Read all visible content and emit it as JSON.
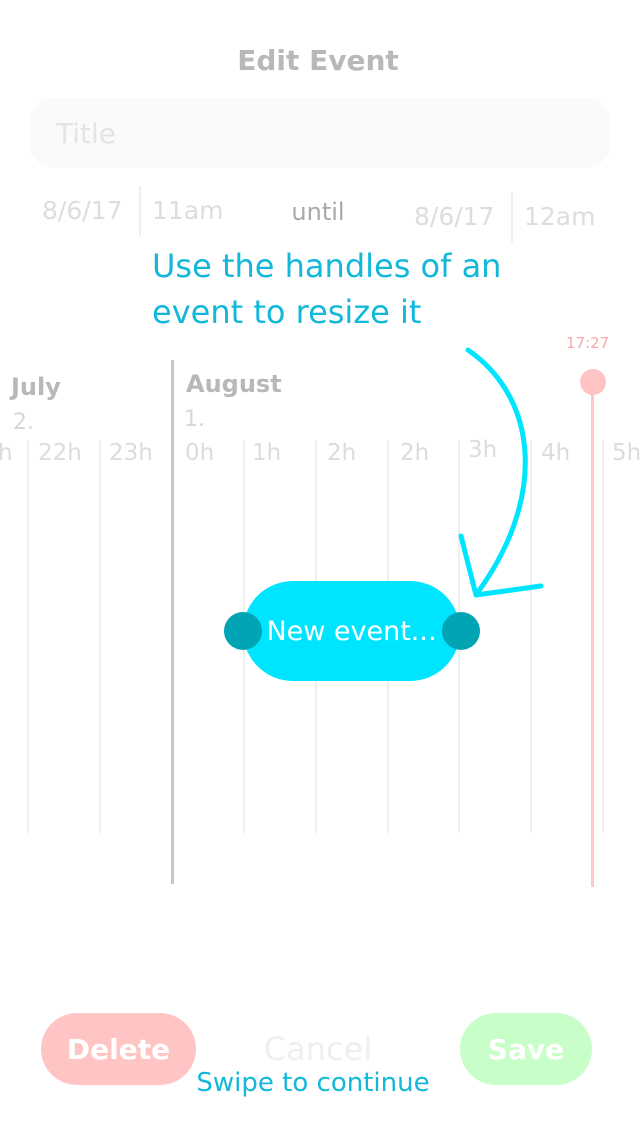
{
  "header": {
    "title": "Edit Event"
  },
  "form": {
    "title_placeholder": "Title",
    "start_date": "8/6/17",
    "start_time": "11am",
    "until_label": "until",
    "end_date": "8/6/17",
    "end_time": "12am"
  },
  "hint": {
    "text": "Use the handles of an event to resize it"
  },
  "timeline": {
    "months": [
      {
        "name": "July",
        "day": "2."
      },
      {
        "name": "August",
        "day": "1."
      }
    ],
    "hour_labels": [
      "h",
      "22h",
      "23h",
      "0h",
      "1h",
      "2h",
      "2h",
      "3h",
      "4h",
      "5h"
    ],
    "now_label": "17:27"
  },
  "event": {
    "label": "New event..."
  },
  "buttons": {
    "delete": "Delete",
    "cancel": "Cancel",
    "save": "Save"
  },
  "footer": {
    "swipe_hint": "Swipe to continue"
  },
  "colors": {
    "accent": "#00e5ff",
    "handle": "#00a4b5",
    "hint_text": "#12b8d9",
    "delete": "#ffc4c4",
    "save": "#c8ffc8",
    "now_indicator": "#ffc3c3"
  }
}
